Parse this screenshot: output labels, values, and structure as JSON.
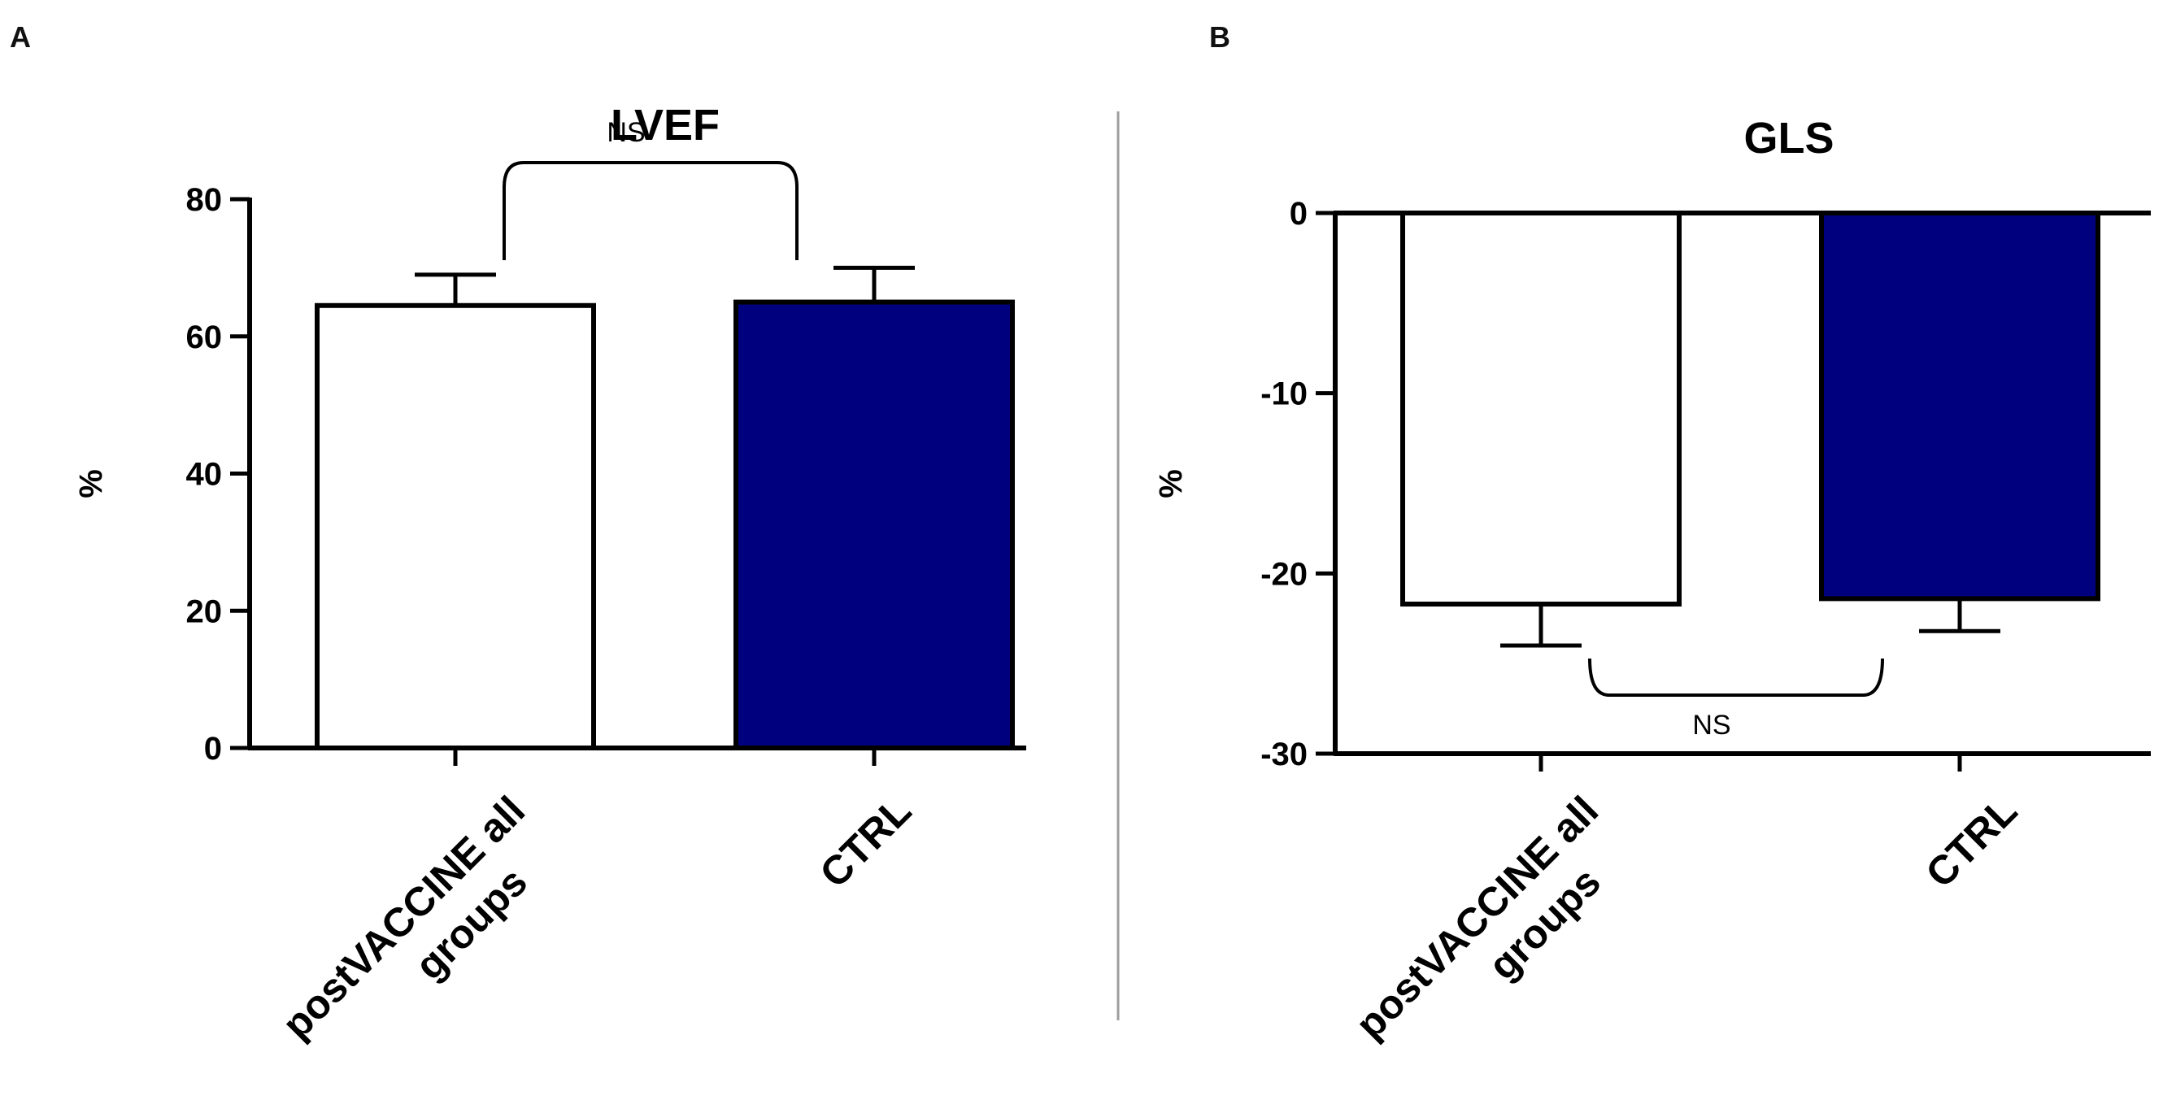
{
  "panel_labels": [
    "A",
    "B"
  ],
  "chart_data": [
    {
      "type": "bar",
      "panel": "A",
      "title": "LVEF",
      "xlabel": "",
      "ylabel": "%",
      "ylim": [
        0,
        80
      ],
      "yticks": [
        0,
        20,
        40,
        60,
        80
      ],
      "ytick_labels": [
        "0",
        "20",
        "40",
        "60",
        "80"
      ],
      "categories": [
        "postVACCINE all groups",
        "CTRL"
      ],
      "category_lines": [
        [
          "postVACCINE all",
          "groups"
        ],
        [
          "CTRL"
        ]
      ],
      "values": [
        64.5,
        65.0
      ],
      "errors": [
        4.5,
        5.0
      ],
      "bar_fills": [
        "#ffffff",
        "#00007f"
      ],
      "annotation": "NS",
      "grid": false
    },
    {
      "type": "bar",
      "panel": "B",
      "title": "GLS",
      "xlabel": "",
      "ylabel": "%",
      "ylim": [
        -30,
        0
      ],
      "yticks": [
        0,
        -10,
        -20,
        -30
      ],
      "ytick_labels": [
        "0",
        "-10",
        "-20",
        "-30"
      ],
      "categories": [
        "postVACCINE all groups",
        "CTRL"
      ],
      "category_lines": [
        [
          "postVACCINE all",
          "groups"
        ],
        [
          "CTRL"
        ]
      ],
      "values": [
        -21.7,
        -21.4
      ],
      "errors": [
        2.3,
        1.8
      ],
      "bar_fills": [
        "#ffffff",
        "#00007f"
      ],
      "annotation": "NS",
      "grid": false
    }
  ],
  "colors": {
    "ctrl_bar": "#00007f",
    "axis": "#000000",
    "divider": "#9e9e9e"
  }
}
